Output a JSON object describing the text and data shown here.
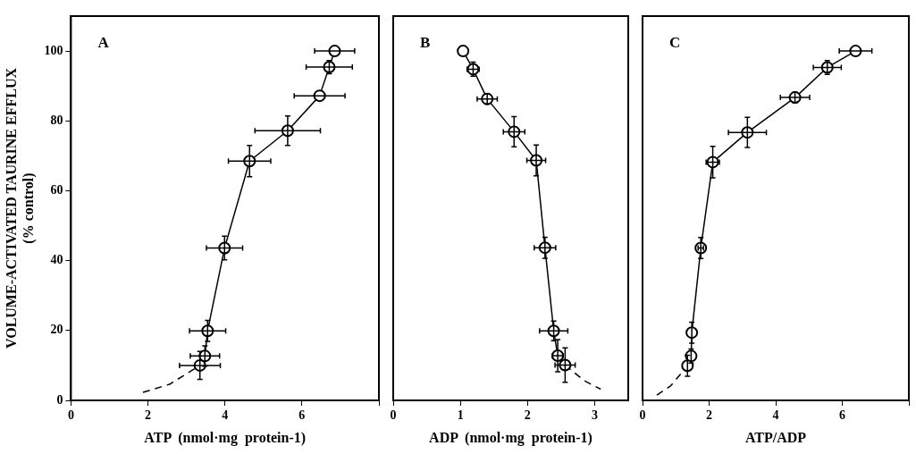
{
  "chart_data": [
    {
      "type": "line",
      "xlabel": "ATP  (nmol·mg  protein-1)",
      "ylabel": "VOLUME-ACTIVATED TAURINE EFFLUX\n(% control)",
      "xlim": [
        0,
        8
      ],
      "xticks": [
        0,
        2,
        4,
        6,
        {
          "value": 8,
          "label": null
        }
      ],
      "ylim": [
        0,
        110
      ],
      "yticks": [
        0,
        20,
        40,
        60,
        80,
        100
      ],
      "grid": false,
      "legend": false,
      "annotations": [
        "A"
      ],
      "series": [
        {
          "type": "line",
          "color": "#000000",
          "marker": "circle",
          "line_style": "solid",
          "x": [
            6.85,
            6.71,
            6.46,
            5.63,
            4.64,
            3.99,
            3.55,
            3.48,
            3.35
          ],
          "values": [
            100,
            95.4,
            87.2,
            77.2,
            68.5,
            43.6,
            19.9,
            12.7,
            10.0
          ],
          "errors": [
            null,
            1.9,
            null,
            4.2,
            4.5,
            3.4,
            3.0,
            2.9,
            4.0
          ],
          "xerrors": [
            0.52,
            0.6,
            0.66,
            0.85,
            0.55,
            0.47,
            0.47,
            0.38,
            0.53
          ]
        },
        {
          "type": "line",
          "color": "#000000",
          "marker": "none",
          "line_style": "dashed",
          "x": [
            1.87,
            2.56,
            3.35
          ],
          "values": [
            2.3,
            4.6,
            10.0
          ]
        }
      ]
    },
    {
      "type": "line",
      "xlabel": "ADP  (nmol·mg  protein-1)",
      "xlim": [
        0,
        3.5
      ],
      "xticks": [
        0,
        1,
        2,
        3
      ],
      "ylim": [
        0,
        110
      ],
      "yticks": [
        0,
        20,
        40,
        60,
        80,
        100
      ],
      "tick_labels": "x",
      "grid": false,
      "legend": false,
      "annotations": [
        "B"
      ],
      "series": [
        {
          "type": "line",
          "color": "#000000",
          "marker": "circle",
          "line_style": "solid",
          "x": [
            1.04,
            1.19,
            1.4,
            1.8,
            2.13,
            2.26,
            2.39,
            2.45,
            2.56
          ],
          "values": [
            100,
            94.8,
            86.3,
            76.9,
            68.7,
            43.7,
            19.9,
            12.8,
            10.1
          ],
          "errors": [
            null,
            2,
            1.5,
            4.3,
            4.4,
            3.0,
            2.8,
            4.6,
            4.9
          ],
          "xerrors": [
            null,
            0.09,
            0.15,
            0.16,
            0.14,
            0.16,
            0.21,
            0.08,
            0.15
          ]
        },
        {
          "type": "line",
          "color": "#000000",
          "marker": "none",
          "line_style": "dashed",
          "x": [
            2.56,
            2.84,
            3.09
          ],
          "values": [
            10.1,
            5.7,
            3.2
          ]
        }
      ]
    },
    {
      "type": "line",
      "xlabel": "ATP/ADP",
      "xlim": [
        0,
        8
      ],
      "xticks": [
        0,
        2,
        4,
        6,
        {
          "value": 8,
          "label": null
        }
      ],
      "ylim": [
        0,
        110
      ],
      "yticks": [
        0,
        20,
        40,
        60,
        80,
        100
      ],
      "tick_labels": "x",
      "grid": false,
      "legend": false,
      "annotations": [
        "C"
      ],
      "series": [
        {
          "type": "line",
          "color": "#000000",
          "marker": "circle",
          "line_style": "solid",
          "x": [
            6.4,
            5.55,
            4.58,
            3.15,
            2.11,
            1.75,
            1.48,
            1.46,
            1.35
          ],
          "values": [
            100,
            95.3,
            86.7,
            76.7,
            68.2,
            43.6,
            19.4,
            12.7,
            9.9
          ],
          "errors": [
            null,
            2,
            1.5,
            4.3,
            4.5,
            3.0,
            3.0,
            2.0,
            3.0
          ],
          "xerrors": [
            0.49,
            0.42,
            0.44,
            0.57,
            0.2,
            0.08,
            null,
            null,
            null
          ]
        },
        {
          "type": "line",
          "color": "#000000",
          "marker": "none",
          "line_style": "dashed",
          "x": [
            0.43,
            0.85,
            1.35
          ],
          "values": [
            1.5,
            4.2,
            9.9
          ]
        }
      ]
    }
  ]
}
